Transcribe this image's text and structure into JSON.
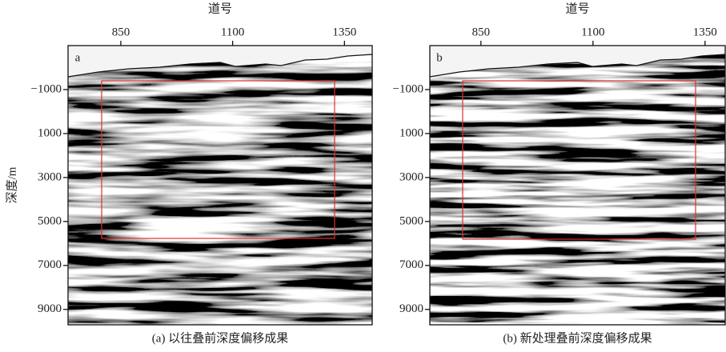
{
  "chart_data": [
    {
      "type": "seismic",
      "xlabel": "道号",
      "ylabel": "深度/m",
      "panel_label": "a",
      "caption": "(a) 以往叠前深度偏移成果",
      "xlim": [
        732,
        1412
      ],
      "xticks": [
        850,
        1100,
        1350
      ],
      "ylim": [
        -3000,
        9700
      ],
      "yticks": [
        {
          "value": -1000,
          "label": "−1000"
        },
        1000,
        3000,
        5000,
        7000,
        9000
      ]
    },
    {
      "type": "seismic",
      "xlabel": "道号",
      "panel_label": "b",
      "caption": "(b) 新处理叠前深度偏移成果",
      "xlim": [
        736,
        1395
      ],
      "xticks": [
        850,
        1100,
        1350
      ],
      "ylim": [
        -3000,
        9700
      ],
      "yticks": [
        {
          "value": -1000,
          "label": "−1000"
        },
        1000,
        3000,
        5000,
        7000,
        9000
      ]
    }
  ]
}
